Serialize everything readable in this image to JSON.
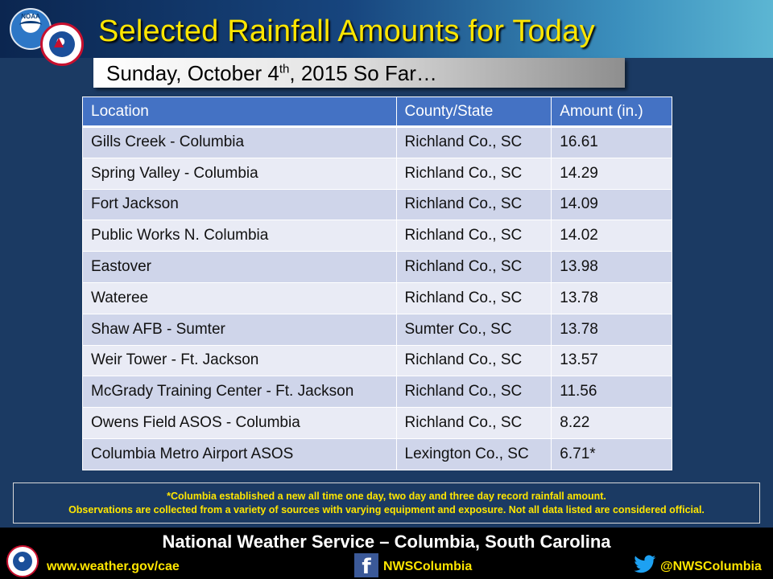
{
  "header": {
    "title": "Selected Rainfall Amounts for Today",
    "subtitle_pre": "Sunday, October 4",
    "subtitle_sup": "th",
    "subtitle_post": ", 2015 So Far…",
    "noaa_logo_text": "NOAA"
  },
  "table": {
    "headers": [
      "Location",
      "County/State",
      "Amount (in.)"
    ],
    "rows": [
      [
        "Gills Creek - Columbia",
        "Richland Co., SC",
        "16.61"
      ],
      [
        "Spring Valley - Columbia",
        "Richland Co., SC",
        "14.29"
      ],
      [
        "Fort Jackson",
        "Richland Co., SC",
        "14.09"
      ],
      [
        "Public Works N. Columbia",
        "Richland Co., SC",
        "14.02"
      ],
      [
        "Eastover",
        "Richland Co., SC",
        "13.98"
      ],
      [
        "Wateree",
        "Richland Co., SC",
        "13.78"
      ],
      [
        "Shaw AFB - Sumter",
        "Sumter Co., SC",
        "13.78"
      ],
      [
        "Weir Tower - Ft. Jackson",
        "Richland Co., SC",
        "13.57"
      ],
      [
        "McGrady Training Center - Ft. Jackson",
        "Richland Co., SC",
        "11.56"
      ],
      [
        "Owens Field ASOS - Columbia",
        "Richland Co., SC",
        "8.22"
      ],
      [
        "Columbia Metro Airport ASOS",
        "Lexington Co., SC",
        "6.71*"
      ]
    ]
  },
  "note": {
    "line1": "*Columbia established a new all time one day, two day and three day record rainfall amount.",
    "line2": "Observations are collected from a variety of sources with varying equipment and exposure. Not all data listed are considered official."
  },
  "footer": {
    "title": "National Weather Service – Columbia, South Carolina",
    "website": "www.weather.gov/cae",
    "facebook": "NWSColumbia",
    "twitter": "@NWSColumbia"
  },
  "colors": {
    "background": "#1b3a63",
    "title": "#ffe600",
    "table_header": "#4472c4",
    "row_odd": "#cfd5ea",
    "row_even": "#e9ebf5",
    "footer": "#000000"
  }
}
